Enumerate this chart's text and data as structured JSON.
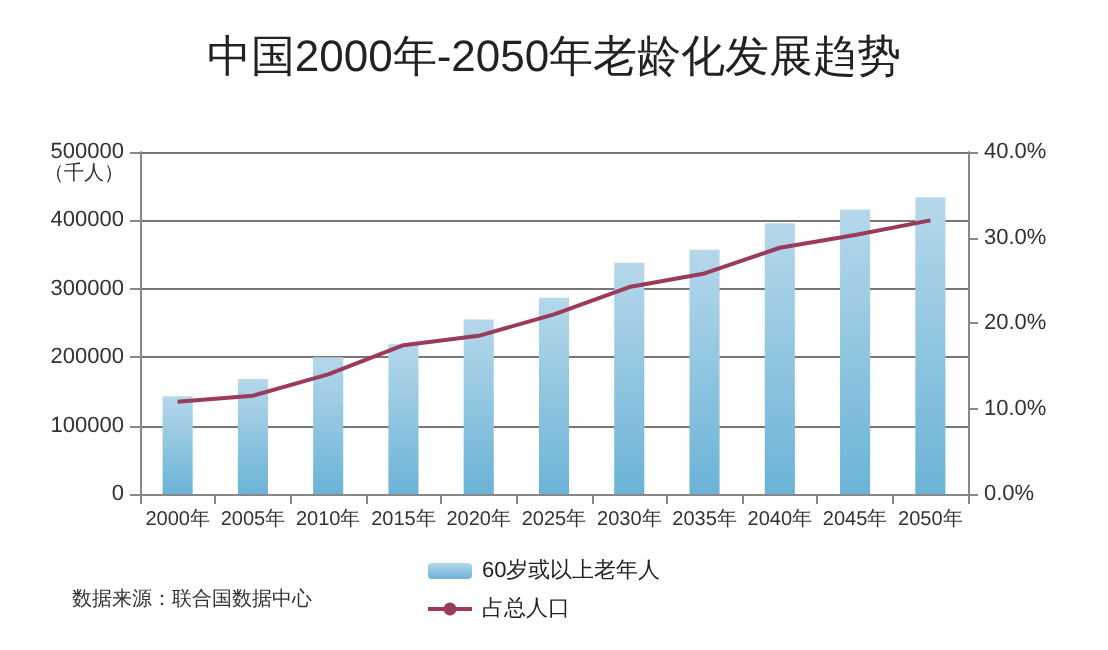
{
  "chart_data": {
    "type": "bar",
    "title": "中国2000年-2050年老龄化发展趋势",
    "ylabel": "（千人）",
    "categories": [
      "2000年",
      "2005年",
      "2010年",
      "2015年",
      "2020年",
      "2025年",
      "2030年",
      "2035年",
      "2040年",
      "2045年",
      "2050年"
    ],
    "series": [
      {
        "name": "60岁或以上老年人",
        "color": "#6bb3d6",
        "values": [
          143000,
          168000,
          200000,
          219000,
          255000,
          287000,
          338000,
          357000,
          396000,
          416000,
          434000
        ]
      },
      {
        "name": "占总人口",
        "type": "line",
        "axis": "y2",
        "color": "#9b3a5a",
        "values": [
          10.8,
          11.5,
          14.0,
          17.4,
          18.5,
          21.0,
          24.2,
          25.8,
          28.8,
          30.3,
          32.0
        ]
      }
    ],
    "ylim": [
      0,
      500000
    ],
    "yticks": [
      0,
      100000,
      200000,
      300000,
      400000,
      500000
    ],
    "y2lim": [
      0,
      40
    ],
    "y2ticks": [
      {
        "value": 0,
        "label": "0.0%"
      },
      {
        "value": 10,
        "label": "10.0%"
      },
      {
        "value": 20,
        "label": "20.0%"
      },
      {
        "value": 30,
        "label": "30.0%"
      },
      {
        "value": 40,
        "label": "40.0%"
      }
    ],
    "grid": "y",
    "legend": "bottom",
    "marker": "none",
    "line_style": "solid",
    "annotations": [
      "数据来源：联合国数据中心"
    ]
  }
}
